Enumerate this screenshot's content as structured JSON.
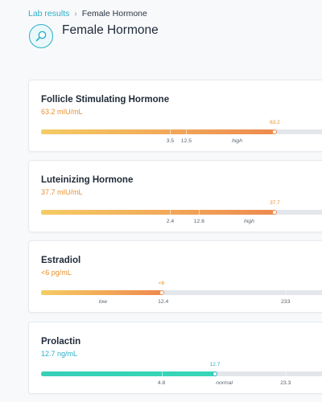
{
  "breadcrumb": {
    "parent": "Lab results",
    "current": "Female Hormone"
  },
  "page": {
    "title": "Female Hormone",
    "icon": "magnifier-icon"
  },
  "colors": {
    "accent": "#2bb0c6",
    "high": "#ee8a4f",
    "normal": "#35d0b6"
  },
  "results": [
    {
      "name": "Follicle Stimulating Hormone",
      "value": "63.2 mIU/mL",
      "marker": "63.2",
      "status": "high",
      "fill": 0.8,
      "labels": [
        {
          "text": "3.5",
          "pos": 0.442
        },
        {
          "text": "12.5",
          "pos": 0.497
        },
        {
          "text": "high",
          "pos": 0.671,
          "italic": true
        }
      ]
    },
    {
      "name": "Luteinizing Hormone",
      "value": "37.7 mIU/mL",
      "marker": "37.7",
      "status": "high",
      "fill": 0.8,
      "labels": [
        {
          "text": "2.4",
          "pos": 0.442
        },
        {
          "text": "12.6",
          "pos": 0.541
        },
        {
          "text": "high",
          "pos": 0.712,
          "italic": true
        }
      ]
    },
    {
      "name": "Estradiol",
      "value": "<6 pg/mL",
      "marker": "<6",
      "status": "low",
      "fill": 0.412,
      "labels": [
        {
          "text": "low",
          "pos": 0.212,
          "italic": true
        },
        {
          "text": "12.4",
          "pos": 0.418
        },
        {
          "text": "233",
          "pos": 0.837
        }
      ]
    },
    {
      "name": "Prolactin",
      "value": "12.7 ng/mL",
      "marker": "12.7",
      "status": "normal",
      "fill": 0.595,
      "labels": [
        {
          "text": "4.8",
          "pos": 0.412
        },
        {
          "text": "normal",
          "pos": 0.627,
          "italic": true
        },
        {
          "text": "23.3",
          "pos": 0.837
        }
      ]
    }
  ]
}
